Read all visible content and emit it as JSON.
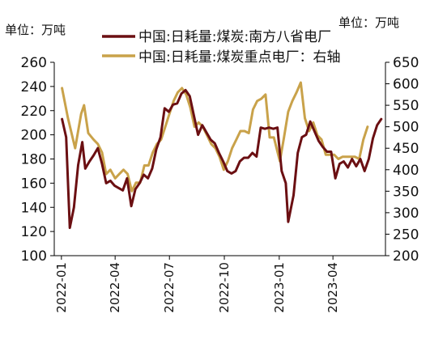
{
  "chart_data": {
    "type": "line",
    "units": {
      "left": "单位：万吨",
      "right": "单位：万吨"
    },
    "x_ticks": [
      "2022-01",
      "2022-04",
      "2022-07",
      "2022-10",
      "2023-01",
      "2023-04"
    ],
    "y_left": {
      "ticks": [
        100,
        120,
        140,
        160,
        180,
        200,
        220,
        240,
        260
      ],
      "range": [
        100,
        260
      ]
    },
    "y_right": {
      "ticks": [
        200,
        250,
        300,
        350,
        400,
        450,
        500,
        550,
        600,
        650
      ],
      "range": [
        200,
        650
      ]
    },
    "grid": false,
    "legend_position": "top",
    "series": [
      {
        "name": "中国:日耗量:煤炭:南方八省电厂",
        "axis": "left",
        "color": "#6b0f12",
        "points": [
          [
            "2022-01-02",
            213
          ],
          [
            "2022-01-09",
            198
          ],
          [
            "2022-01-15",
            123
          ],
          [
            "2022-01-22",
            140
          ],
          [
            "2022-01-29",
            175
          ],
          [
            "2022-02-05",
            194
          ],
          [
            "2022-02-10",
            172
          ],
          [
            "2022-02-17",
            178
          ],
          [
            "2022-02-24",
            183
          ],
          [
            "2022-03-03",
            189
          ],
          [
            "2022-03-10",
            176
          ],
          [
            "2022-03-17",
            160
          ],
          [
            "2022-03-24",
            162
          ],
          [
            "2022-03-31",
            158
          ],
          [
            "2022-04-07",
            156
          ],
          [
            "2022-04-14",
            154
          ],
          [
            "2022-04-21",
            164
          ],
          [
            "2022-04-28",
            141
          ],
          [
            "2022-05-05",
            155
          ],
          [
            "2022-05-12",
            160
          ],
          [
            "2022-05-19",
            167
          ],
          [
            "2022-05-26",
            164
          ],
          [
            "2022-06-02",
            172
          ],
          [
            "2022-06-09",
            188
          ],
          [
            "2022-06-16",
            198
          ],
          [
            "2022-06-23",
            222
          ],
          [
            "2022-06-30",
            219
          ],
          [
            "2022-07-07",
            225
          ],
          [
            "2022-07-14",
            226
          ],
          [
            "2022-07-21",
            234
          ],
          [
            "2022-07-28",
            237
          ],
          [
            "2022-08-04",
            232
          ],
          [
            "2022-08-11",
            216
          ],
          [
            "2022-08-18",
            200
          ],
          [
            "2022-08-25",
            208
          ],
          [
            "2022-09-01",
            202
          ],
          [
            "2022-09-08",
            196
          ],
          [
            "2022-09-15",
            193
          ],
          [
            "2022-09-22",
            185
          ],
          [
            "2022-09-29",
            178
          ],
          [
            "2022-10-06",
            170
          ],
          [
            "2022-10-13",
            168
          ],
          [
            "2022-10-20",
            170
          ],
          [
            "2022-10-27",
            178
          ],
          [
            "2022-11-03",
            181
          ],
          [
            "2022-11-10",
            181
          ],
          [
            "2022-11-17",
            185
          ],
          [
            "2022-11-24",
            182
          ],
          [
            "2022-12-01",
            206
          ],
          [
            "2022-12-08",
            205
          ],
          [
            "2022-12-15",
            206
          ],
          [
            "2022-12-22",
            205
          ],
          [
            "2022-12-29",
            206
          ],
          [
            "2023-01-05",
            170
          ],
          [
            "2023-01-12",
            160
          ],
          [
            "2023-01-16",
            128
          ],
          [
            "2023-01-25",
            150
          ],
          [
            "2023-02-01",
            185
          ],
          [
            "2023-02-08",
            198
          ],
          [
            "2023-02-15",
            200
          ],
          [
            "2023-02-22",
            211
          ],
          [
            "2023-03-01",
            203
          ],
          [
            "2023-03-08",
            195
          ],
          [
            "2023-03-15",
            190
          ],
          [
            "2023-03-22",
            186
          ],
          [
            "2023-03-29",
            186
          ],
          [
            "2023-04-05",
            164
          ],
          [
            "2023-04-12",
            176
          ],
          [
            "2023-04-19",
            178
          ],
          [
            "2023-04-26",
            173
          ],
          [
            "2023-05-03",
            180
          ],
          [
            "2023-05-10",
            174
          ],
          [
            "2023-05-17",
            180
          ],
          [
            "2023-05-24",
            170
          ],
          [
            "2023-05-31",
            180
          ],
          [
            "2023-06-07",
            197
          ],
          [
            "2023-06-14",
            208
          ],
          [
            "2023-06-21",
            213
          ]
        ]
      },
      {
        "name": "中国:日耗量:煤炭重点电厂：右轴",
        "axis": "right",
        "color": "#c9a24a",
        "points": [
          [
            "2022-01-02",
            590
          ],
          [
            "2022-01-12",
            520
          ],
          [
            "2022-01-24",
            450
          ],
          [
            "2022-02-03",
            530
          ],
          [
            "2022-02-08",
            550
          ],
          [
            "2022-02-15",
            485
          ],
          [
            "2022-02-24",
            470
          ],
          [
            "2022-03-03",
            460
          ],
          [
            "2022-03-10",
            440
          ],
          [
            "2022-03-17",
            390
          ],
          [
            "2022-03-24",
            400
          ],
          [
            "2022-04-01",
            380
          ],
          [
            "2022-04-08",
            390
          ],
          [
            "2022-04-15",
            400
          ],
          [
            "2022-04-22",
            390
          ],
          [
            "2022-04-29",
            350
          ],
          [
            "2022-05-06",
            370
          ],
          [
            "2022-05-13",
            370
          ],
          [
            "2022-05-20",
            410
          ],
          [
            "2022-05-27",
            410
          ],
          [
            "2022-06-03",
            440
          ],
          [
            "2022-06-10",
            460
          ],
          [
            "2022-06-17",
            470
          ],
          [
            "2022-06-24",
            500
          ],
          [
            "2022-07-01",
            530
          ],
          [
            "2022-07-08",
            560
          ],
          [
            "2022-07-15",
            580
          ],
          [
            "2022-07-22",
            590
          ],
          [
            "2022-07-29",
            575
          ],
          [
            "2022-08-05",
            545
          ],
          [
            "2022-08-12",
            500
          ],
          [
            "2022-08-19",
            510
          ],
          [
            "2022-08-26",
            500
          ],
          [
            "2022-09-02",
            480
          ],
          [
            "2022-09-09",
            460
          ],
          [
            "2022-09-16",
            450
          ],
          [
            "2022-09-23",
            430
          ],
          [
            "2022-09-30",
            400
          ],
          [
            "2022-10-07",
            420
          ],
          [
            "2022-10-14",
            450
          ],
          [
            "2022-10-21",
            470
          ],
          [
            "2022-10-28",
            490
          ],
          [
            "2022-11-04",
            490
          ],
          [
            "2022-11-11",
            485
          ],
          [
            "2022-11-18",
            540
          ],
          [
            "2022-11-25",
            560
          ],
          [
            "2022-12-02",
            565
          ],
          [
            "2022-12-09",
            575
          ],
          [
            "2022-12-16",
            475
          ],
          [
            "2022-12-23",
            475
          ],
          [
            "2023-01-02",
            420
          ],
          [
            "2023-01-09",
            475
          ],
          [
            "2023-01-16",
            535
          ],
          [
            "2023-01-23",
            560
          ],
          [
            "2023-01-30",
            580
          ],
          [
            "2023-02-06",
            603
          ],
          [
            "2023-02-13",
            520
          ],
          [
            "2023-02-20",
            490
          ],
          [
            "2023-02-27",
            510
          ],
          [
            "2023-03-06",
            480
          ],
          [
            "2023-03-13",
            470
          ],
          [
            "2023-03-20",
            435
          ],
          [
            "2023-03-27",
            435
          ],
          [
            "2023-04-03",
            435
          ],
          [
            "2023-04-10",
            425
          ],
          [
            "2023-04-17",
            430
          ],
          [
            "2023-04-24",
            430
          ],
          [
            "2023-05-01",
            430
          ],
          [
            "2023-05-08",
            430
          ],
          [
            "2023-05-15",
            425
          ],
          [
            "2023-05-22",
            470
          ],
          [
            "2023-05-29",
            500
          ]
        ]
      }
    ]
  }
}
